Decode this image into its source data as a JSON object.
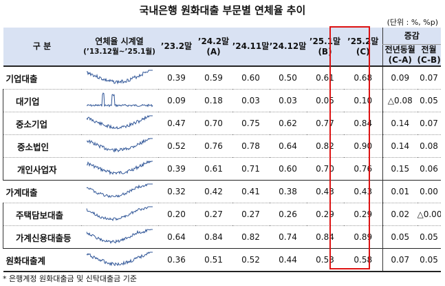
{
  "title": "국내은행 원화대출 부문별 연체율 추이",
  "unit": "(단위 : %, %p)",
  "headers": {
    "category": "구 분",
    "series_line1": "연체율 시계열",
    "series_line2": "(’13.12월~’25.1월)",
    "cols": [
      {
        "l1": "’23.2말",
        "l2": ""
      },
      {
        "l1": "’24.2말",
        "l2": "(A)"
      },
      {
        "l1": "’24.11말",
        "l2": ""
      },
      {
        "l1": "’24.12말",
        "l2": ""
      },
      {
        "l1": "’25.1말",
        "l2": "(B)"
      },
      {
        "l1": "’25.2말",
        "l2": "(C)"
      }
    ],
    "change_group": "증감",
    "change_cols": [
      {
        "l1": "전년동월",
        "l2": "(C-A)"
      },
      {
        "l1": "전월",
        "l2": "(C-B)"
      }
    ]
  },
  "rows": [
    {
      "label": "기업대출",
      "level": 0,
      "spark": "corp",
      "values": [
        "0.39",
        "0.59",
        "0.60",
        "0.50",
        "0.61",
        "0.68"
      ],
      "yoy": "0.09",
      "mom": "0.07"
    },
    {
      "label": "대기업",
      "level": 1,
      "spark": "large",
      "values": [
        "0.09",
        "0.18",
        "0.03",
        "0.03",
        "0.05",
        "0.10"
      ],
      "yoy": "△0.08",
      "mom": "0.05"
    },
    {
      "label": "중소기업",
      "level": 1,
      "spark": "sme",
      "values": [
        "0.47",
        "0.70",
        "0.75",
        "0.62",
        "0.77",
        "0.84"
      ],
      "yoy": "0.14",
      "mom": "0.07"
    },
    {
      "label": "중소법인",
      "level": 2,
      "spark": "smecorp",
      "values": [
        "0.52",
        "0.76",
        "0.78",
        "0.64",
        "0.82",
        "0.90"
      ],
      "yoy": "0.14",
      "mom": "0.08"
    },
    {
      "label": "개인사업자",
      "level": 2,
      "spark": "soho",
      "values": [
        "0.39",
        "0.61",
        "0.71",
        "0.60",
        "0.70",
        "0.76"
      ],
      "yoy": "0.15",
      "mom": "0.06"
    },
    {
      "label": "가계대출",
      "level": 0,
      "spark": "hh",
      "values": [
        "0.32",
        "0.42",
        "0.41",
        "0.38",
        "0.43",
        "0.43"
      ],
      "yoy": "0.01",
      "mom": "0.00"
    },
    {
      "label": "주택담보대출",
      "level": 1,
      "spark": "mortgage",
      "values": [
        "0.20",
        "0.27",
        "0.27",
        "0.26",
        "0.29",
        "0.29"
      ],
      "yoy": "0.02",
      "mom": "△0.00"
    },
    {
      "label": "가계신용대출등",
      "level": 1,
      "spark": "credit",
      "values": [
        "0.64",
        "0.84",
        "0.82",
        "0.74",
        "0.84",
        "0.89"
      ],
      "yoy": "0.05",
      "mom": "0.05"
    },
    {
      "label": "원화대출계",
      "level": 0,
      "spark": "total",
      "values": [
        "0.36",
        "0.51",
        "0.52",
        "0.44",
        "0.53",
        "0.58"
      ],
      "yoy": "0.07",
      "mom": "0.05"
    }
  ],
  "footnote": "* 은행계정 원화대출금 및 신탁대출금 기준",
  "colors": {
    "header_bg": "#d9e2f3",
    "spark_line": "#2f5597",
    "highlight_border": "#dd1111"
  }
}
